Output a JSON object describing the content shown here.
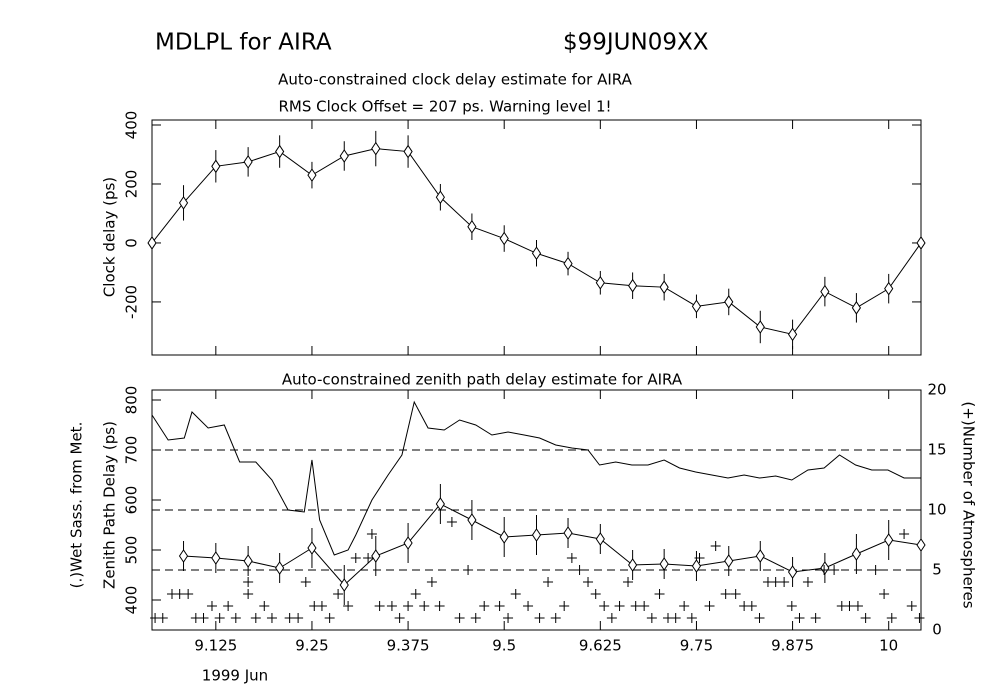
{
  "header": {
    "title": "MDLPL for AIRA",
    "code": "$99JUN09XX"
  },
  "chart_data": [
    {
      "type": "line",
      "title": [
        "Auto-constrained clock delay estimate for AIRA",
        "RMS Clock Offset = 207 ps. Warning level 1!"
      ],
      "ylabel": "Clock delay (ps)",
      "xlim": [
        9.042,
        10.042
      ],
      "xticks": [
        9.125,
        9.25,
        9.375,
        9.5,
        9.625,
        9.75,
        9.875,
        10
      ],
      "ylim": [
        -380,
        417
      ],
      "yticks": [
        -200,
        0,
        200,
        400
      ],
      "x": [
        9.042,
        9.083,
        9.125,
        9.167,
        9.208,
        9.25,
        9.292,
        9.333,
        9.375,
        9.417,
        9.458,
        9.5,
        9.542,
        9.583,
        9.625,
        9.667,
        9.708,
        9.75,
        9.792,
        9.833,
        9.875,
        9.917,
        9.958,
        10.0,
        10.042
      ],
      "values": [
        0,
        136,
        260,
        275,
        310,
        230,
        295,
        320,
        310,
        155,
        55,
        15,
        -35,
        -70,
        -135,
        -145,
        -150,
        -215,
        -200,
        -285,
        -310,
        -165,
        -220,
        -155,
        0
      ],
      "errors": [
        null,
        60,
        55,
        50,
        55,
        45,
        50,
        60,
        55,
        45,
        45,
        45,
        45,
        40,
        40,
        45,
        45,
        40,
        45,
        55,
        50,
        50,
        50,
        50,
        null
      ],
      "marker": "diamond",
      "color": "#000000"
    },
    {
      "type": "line",
      "title": "Auto-constrained zenith path delay estimate for AIRA",
      "ylabel": [
        "(.)Wet Sass. from Met.",
        "Zenith Path Delay (ps)"
      ],
      "y2label": "(+)Number of Atmospheres",
      "xlabel": "1999 Jun",
      "xlim": [
        9.042,
        10.042
      ],
      "xticks": [
        9.125,
        9.25,
        9.375,
        9.5,
        9.625,
        9.75,
        9.875,
        10
      ],
      "ylim": [
        340,
        820
      ],
      "yticks": [
        400,
        500,
        600,
        700,
        800
      ],
      "y2lim": [
        0,
        20
      ],
      "y2ticks": [
        0,
        5,
        10,
        15,
        20
      ],
      "y2grid": "dashed",
      "series": [
        {
          "marker": "diamond",
          "color": "#000000",
          "x": [
            9.083,
            9.125,
            9.167,
            9.208,
            9.25,
            9.292,
            9.333,
            9.375,
            9.417,
            9.458,
            9.5,
            9.542,
            9.583,
            9.625,
            9.667,
            9.708,
            9.75,
            9.792,
            9.833,
            9.875,
            9.917,
            9.958,
            10.0,
            10.042
          ],
          "values": [
            488,
            484,
            478,
            464,
            504,
            430,
            488,
            514,
            592,
            560,
            526,
            530,
            534,
            522,
            470,
            472,
            468,
            478,
            488,
            456,
            464,
            492,
            520,
            510
          ],
          "errors": [
            30,
            30,
            30,
            30,
            40,
            40,
            40,
            40,
            40,
            40,
            40,
            40,
            30,
            30,
            30,
            30,
            30,
            30,
            30,
            30,
            30,
            40,
            40,
            30
          ]
        },
        {
          "marker": "none",
          "color": "#000000",
          "x": [
            9.042,
            9.063,
            9.084,
            9.094,
            9.115,
            9.136,
            9.156,
            9.177,
            9.198,
            9.219,
            9.24,
            9.25,
            9.26,
            9.279,
            9.297,
            9.307,
            9.328,
            9.349,
            9.367,
            9.383,
            9.401,
            9.422,
            9.442,
            9.463,
            9.484,
            9.505,
            9.526,
            9.546,
            9.567,
            9.588,
            9.609,
            9.624,
            9.645,
            9.666,
            9.687,
            9.708,
            9.728,
            9.749,
            9.77,
            9.791,
            9.812,
            9.832,
            9.853,
            9.874,
            9.895,
            9.916,
            9.936,
            9.957,
            9.978,
            9.999,
            10.02,
            10.042
          ],
          "values": [
            770,
            720,
            724,
            776,
            744,
            750,
            676,
            676,
            640,
            580,
            576,
            680,
            560,
            490,
            500,
            530,
            600,
            650,
            690,
            796,
            744,
            740,
            760,
            750,
            730,
            736,
            730,
            724,
            710,
            704,
            700,
            670,
            676,
            670,
            670,
            680,
            664,
            656,
            650,
            644,
            650,
            644,
            648,
            640,
            660,
            664,
            690,
            670,
            660,
            660,
            644,
            644
          ]
        },
        {
          "marker": "plus",
          "axis": "y2",
          "color": "#000000",
          "x": [
            9.046,
            9.056,
            9.068,
            9.078,
            9.089,
            9.099,
            9.109,
            9.12,
            9.13,
            9.141,
            9.151,
            9.167,
            9.167,
            9.177,
            9.188,
            9.198,
            9.221,
            9.232,
            9.242,
            9.253,
            9.263,
            9.273,
            9.284,
            9.297,
            9.307,
            9.323,
            9.328,
            9.338,
            9.354,
            9.364,
            9.375,
            9.385,
            9.396,
            9.406,
            9.416,
            9.432,
            9.442,
            9.453,
            9.463,
            9.474,
            9.494,
            9.505,
            9.515,
            9.531,
            9.546,
            9.557,
            9.567,
            9.578,
            9.588,
            9.598,
            9.609,
            9.619,
            9.63,
            9.64,
            9.65,
            9.661,
            9.671,
            9.682,
            9.692,
            9.702,
            9.713,
            9.723,
            9.734,
            9.744,
            9.754,
            9.767,
            9.775,
            9.788,
            9.801,
            9.812,
            9.822,
            9.832,
            9.843,
            9.853,
            9.864,
            9.874,
            9.884,
            9.895,
            9.905,
            9.916,
            9.929,
            9.939,
            9.949,
            9.96,
            9.97,
            9.983,
            9.994,
            10.004,
            10.02,
            10.03,
            10.04
          ],
          "values": [
            1,
            1,
            3,
            3,
            3,
            1,
            1,
            2,
            1,
            2,
            1,
            3,
            4,
            1,
            2,
            1,
            1,
            1,
            4,
            2,
            2,
            1,
            3,
            2,
            6,
            6,
            8,
            2,
            2,
            1,
            2,
            3,
            2,
            4,
            2,
            9,
            1,
            5,
            1,
            2,
            2,
            1,
            3,
            2,
            1,
            4,
            1,
            2,
            6,
            5,
            4,
            3,
            2,
            1,
            2,
            4,
            2,
            2,
            1,
            3,
            1,
            1,
            2,
            1,
            6,
            2,
            7,
            3,
            3,
            2,
            2,
            1,
            4,
            4,
            4,
            2,
            1,
            4,
            1,
            5,
            5,
            2,
            2,
            2,
            1,
            5,
            3,
            1,
            8,
            2,
            1
          ]
        }
      ]
    }
  ]
}
